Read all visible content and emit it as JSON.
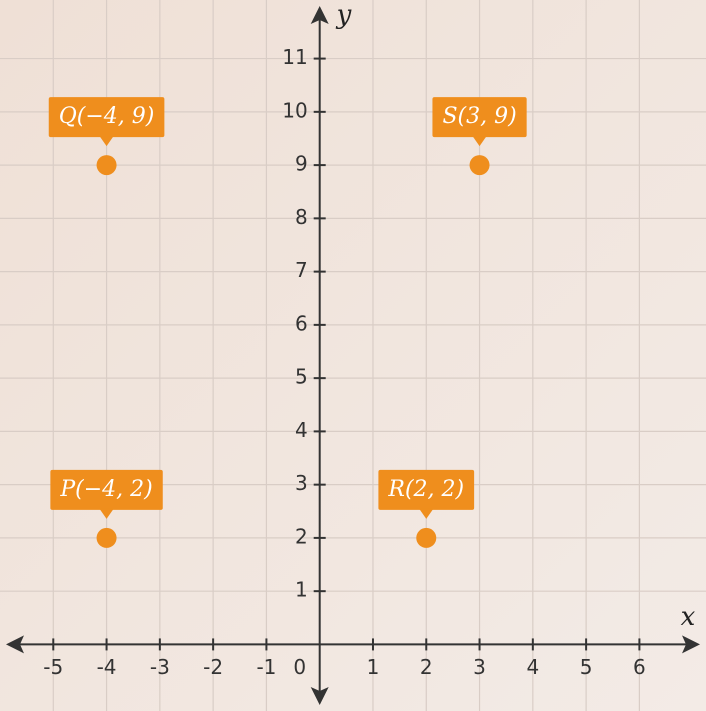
{
  "chart_data": {
    "type": "scatter",
    "x_label": "x",
    "y_label": "y",
    "x": [
      -4,
      -4,
      2,
      3
    ],
    "values": [
      2,
      9,
      2,
      9
    ],
    "point_labels": [
      "P(−4, 2)",
      "Q(−4, 9)",
      "R(2, 2)",
      "S(3, 9)"
    ],
    "color": "#ef8e1d",
    "xlim": [
      -6,
      7.25
    ],
    "ylim": [
      -1.25,
      12.1
    ],
    "xticks": [
      -5,
      -4,
      -3,
      -2,
      -1,
      0,
      1,
      2,
      3,
      4,
      5,
      6
    ],
    "yticks": [
      1,
      2,
      3,
      4,
      5,
      6,
      7,
      8,
      9,
      10,
      11
    ],
    "grid": true
  }
}
